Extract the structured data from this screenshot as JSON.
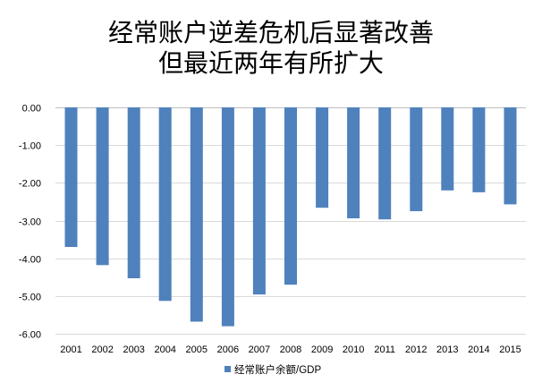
{
  "chart_data": {
    "type": "bar",
    "title_lines": [
      "经常账户逆差危机后显著改善",
      "但最近两年有所扩大"
    ],
    "xlabel": "",
    "ylabel": "",
    "categories": [
      "2001",
      "2002",
      "2003",
      "2004",
      "2005",
      "2006",
      "2007",
      "2008",
      "2009",
      "2010",
      "2011",
      "2012",
      "2013",
      "2014",
      "2015"
    ],
    "series": [
      {
        "name": "经常账户余额/GDP",
        "values": [
          -3.7,
          -4.18,
          -4.53,
          -5.13,
          -5.68,
          -5.8,
          -4.96,
          -4.7,
          -2.66,
          -2.94,
          -2.97,
          -2.75,
          -2.2,
          -2.25,
          -2.57
        ]
      }
    ],
    "ytick_labels": [
      "0.00",
      "-1.00",
      "-2.00",
      "-3.00",
      "-4.00",
      "-5.00",
      "-6.00"
    ],
    "ylim": [
      -6,
      0
    ],
    "grid": true,
    "legend_position": "bottom",
    "colors": {
      "bar": "#4F81BD",
      "grid": "#D9D9D9"
    }
  }
}
